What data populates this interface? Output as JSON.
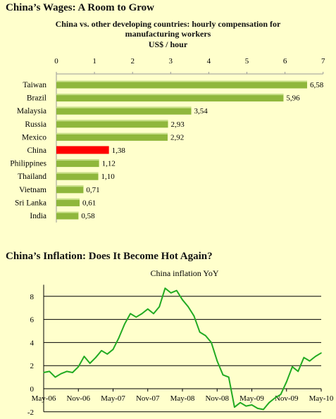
{
  "sections": {
    "wages_title": "China’s Wages: A Room to Grow",
    "wages_subtitle_line1": "China vs. other developing countries: hourly compensation for",
    "wages_subtitle_line2": "manufacturing workers",
    "wages_unit": "US$ / hour",
    "inflation_title": "China’s Inflation: Does It Become Hot Again?"
  },
  "colors": {
    "bar": "#8fb73c",
    "highlight_bar": "#ff0000",
    "line": "#22aa22",
    "background": "#ffffcc"
  },
  "chart_data": [
    {
      "type": "bar",
      "orientation": "horizontal",
      "title": "China vs. other developing countries: hourly compensation for manufacturing workers",
      "xlabel": "US$ / hour",
      "xlim": [
        0,
        7
      ],
      "x_ticks": [
        "0",
        "1",
        "2",
        "3",
        "4",
        "5",
        "6",
        "7"
      ],
      "categories": [
        "Taiwan",
        "Brazil",
        "Malaysia",
        "Russia",
        "Mexico",
        "China",
        "Philippines",
        "Thailand",
        "Vietnam",
        "Sri Lanka",
        "India"
      ],
      "values": [
        6.58,
        5.96,
        3.54,
        2.93,
        2.92,
        1.38,
        1.12,
        1.1,
        0.71,
        0.61,
        0.58
      ],
      "value_labels": [
        "6,58",
        "5,96",
        "3,54",
        "2,93",
        "2,92",
        "1,38",
        "1,12",
        "1,10",
        "0,71",
        "0,61",
        "0,58"
      ],
      "highlight": "China",
      "grid": false
    },
    {
      "type": "line",
      "title": "China inflation YoY",
      "ylim": [
        -2,
        9
      ],
      "y_ticks": [
        "8",
        "6",
        "4",
        "2",
        "0",
        "-2"
      ],
      "x_ticks": [
        "May-06",
        "Nov-06",
        "May-07",
        "Nov-07",
        "May-08",
        "Nov-08",
        "May-09",
        "Nov-09",
        "May-10"
      ],
      "grid": true,
      "series": [
        {
          "x": [
            "May-06",
            "Jun-06",
            "Jul-06",
            "Aug-06",
            "Sep-06",
            "Oct-06",
            "Nov-06",
            "Dec-06",
            "Jan-07",
            "Feb-07",
            "Mar-07",
            "Apr-07",
            "May-07",
            "Jun-07",
            "Jul-07",
            "Aug-07",
            "Sep-07",
            "Oct-07",
            "Nov-07",
            "Dec-07",
            "Jan-08",
            "Feb-08",
            "Mar-08",
            "Apr-08",
            "May-08",
            "Jun-08",
            "Jul-08",
            "Aug-08",
            "Sep-08",
            "Oct-08",
            "Nov-08",
            "Dec-08",
            "Jan-09",
            "Feb-09",
            "Mar-09",
            "Apr-09",
            "May-09",
            "Jun-09",
            "Jul-09",
            "Aug-09",
            "Sep-09",
            "Oct-09",
            "Nov-09",
            "Dec-09",
            "Jan-10",
            "Feb-10",
            "Mar-10",
            "Apr-10",
            "May-10"
          ],
          "values": [
            1.4,
            1.5,
            1.0,
            1.3,
            1.5,
            1.4,
            1.9,
            2.8,
            2.2,
            2.7,
            3.3,
            3.0,
            3.4,
            4.4,
            5.6,
            6.5,
            6.2,
            6.5,
            6.9,
            6.5,
            7.1,
            8.7,
            8.3,
            8.5,
            7.7,
            7.1,
            6.3,
            4.9,
            4.6,
            4.0,
            2.4,
            1.2,
            1.0,
            -1.6,
            -1.2,
            -1.5,
            -1.4,
            -1.7,
            -1.8,
            -1.2,
            -0.8,
            -0.5,
            0.6,
            1.9,
            1.5,
            2.7,
            2.4,
            2.8,
            3.1
          ]
        }
      ]
    }
  ]
}
